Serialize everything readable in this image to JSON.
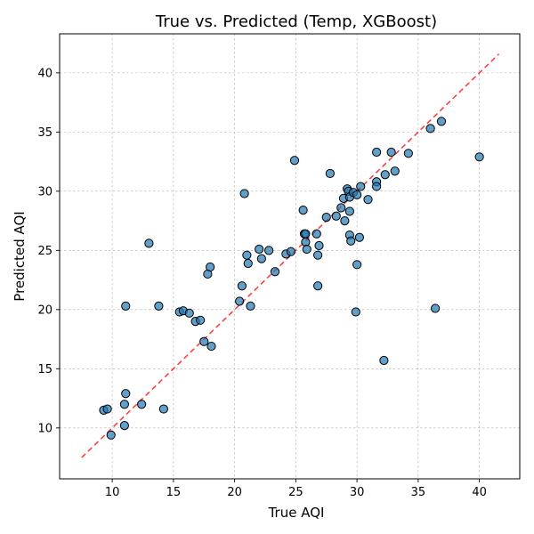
{
  "chart_data": {
    "type": "scatter",
    "title": "True vs. Predicted (Temp, XGBoost)",
    "xlabel": "True AQI",
    "ylabel": "Predicted AQI",
    "xlim": [
      5.7,
      43.3
    ],
    "ylim": [
      5.7,
      43.3
    ],
    "xticks": [
      10,
      15,
      20,
      25,
      30,
      35,
      40
    ],
    "yticks": [
      10,
      15,
      20,
      25,
      30,
      35,
      40
    ],
    "grid": true,
    "marker_color": "#1f77b4",
    "marker_edge_color": "#000000",
    "reference_line": {
      "style": "dashed",
      "color": "#ff0000",
      "from": [
        7.5,
        7.5
      ],
      "to": [
        41.6,
        41.6
      ]
    },
    "points": [
      {
        "x": 9.3,
        "y": 11.5
      },
      {
        "x": 9.6,
        "y": 11.6
      },
      {
        "x": 9.9,
        "y": 9.4
      },
      {
        "x": 11.0,
        "y": 12.0
      },
      {
        "x": 11.0,
        "y": 10.2
      },
      {
        "x": 11.1,
        "y": 12.9
      },
      {
        "x": 11.1,
        "y": 20.3
      },
      {
        "x": 12.4,
        "y": 12.0
      },
      {
        "x": 13.0,
        "y": 25.6
      },
      {
        "x": 13.8,
        "y": 20.3
      },
      {
        "x": 14.2,
        "y": 11.6
      },
      {
        "x": 15.5,
        "y": 19.8
      },
      {
        "x": 15.8,
        "y": 19.9
      },
      {
        "x": 16.3,
        "y": 19.7
      },
      {
        "x": 16.8,
        "y": 19.0
      },
      {
        "x": 17.2,
        "y": 19.1
      },
      {
        "x": 17.5,
        "y": 17.3
      },
      {
        "x": 17.8,
        "y": 23.0
      },
      {
        "x": 18.0,
        "y": 23.6
      },
      {
        "x": 18.1,
        "y": 16.9
      },
      {
        "x": 20.4,
        "y": 20.7
      },
      {
        "x": 20.6,
        "y": 22.0
      },
      {
        "x": 20.8,
        "y": 29.8
      },
      {
        "x": 21.0,
        "y": 24.6
      },
      {
        "x": 21.1,
        "y": 23.9
      },
      {
        "x": 21.3,
        "y": 20.3
      },
      {
        "x": 22.0,
        "y": 25.1
      },
      {
        "x": 22.2,
        "y": 24.3
      },
      {
        "x": 22.8,
        "y": 25.0
      },
      {
        "x": 23.3,
        "y": 23.2
      },
      {
        "x": 24.2,
        "y": 24.7
      },
      {
        "x": 24.6,
        "y": 24.9
      },
      {
        "x": 24.9,
        "y": 32.6
      },
      {
        "x": 25.6,
        "y": 28.4
      },
      {
        "x": 25.7,
        "y": 26.4
      },
      {
        "x": 25.8,
        "y": 26.4
      },
      {
        "x": 25.8,
        "y": 25.7
      },
      {
        "x": 25.9,
        "y": 25.1
      },
      {
        "x": 26.7,
        "y": 26.4
      },
      {
        "x": 26.8,
        "y": 24.6
      },
      {
        "x": 26.8,
        "y": 22.0
      },
      {
        "x": 26.9,
        "y": 25.4
      },
      {
        "x": 27.5,
        "y": 27.8
      },
      {
        "x": 27.8,
        "y": 31.5
      },
      {
        "x": 28.3,
        "y": 27.9
      },
      {
        "x": 28.7,
        "y": 28.6
      },
      {
        "x": 28.9,
        "y": 29.4
      },
      {
        "x": 29.0,
        "y": 27.5
      },
      {
        "x": 29.2,
        "y": 30.2
      },
      {
        "x": 29.3,
        "y": 30.0
      },
      {
        "x": 29.4,
        "y": 29.5
      },
      {
        "x": 29.4,
        "y": 28.3
      },
      {
        "x": 29.4,
        "y": 26.3
      },
      {
        "x": 29.5,
        "y": 25.8
      },
      {
        "x": 29.7,
        "y": 29.9
      },
      {
        "x": 29.9,
        "y": 19.8
      },
      {
        "x": 30.0,
        "y": 29.7
      },
      {
        "x": 30.0,
        "y": 23.8
      },
      {
        "x": 30.2,
        "y": 26.1
      },
      {
        "x": 30.3,
        "y": 30.4
      },
      {
        "x": 30.9,
        "y": 29.3
      },
      {
        "x": 31.6,
        "y": 33.3
      },
      {
        "x": 31.6,
        "y": 30.8
      },
      {
        "x": 31.6,
        "y": 30.4
      },
      {
        "x": 32.2,
        "y": 15.7
      },
      {
        "x": 32.3,
        "y": 31.4
      },
      {
        "x": 32.8,
        "y": 33.3
      },
      {
        "x": 33.1,
        "y": 31.7
      },
      {
        "x": 34.2,
        "y": 33.2
      },
      {
        "x": 36.0,
        "y": 35.3
      },
      {
        "x": 36.4,
        "y": 20.1
      },
      {
        "x": 36.9,
        "y": 35.9
      },
      {
        "x": 40.0,
        "y": 32.9
      }
    ]
  }
}
